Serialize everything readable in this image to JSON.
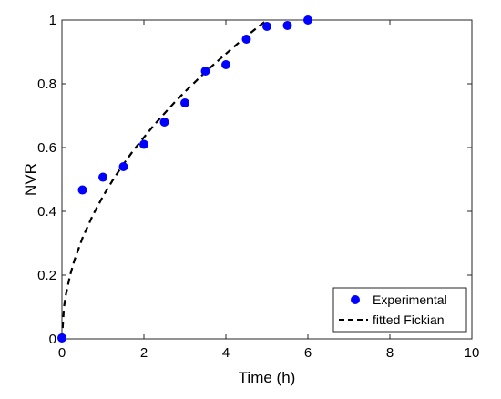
{
  "chart_data": {
    "type": "scatter",
    "xlabel": "Time (h)",
    "ylabel": "NVR",
    "xlim": [
      0,
      10
    ],
    "ylim": [
      0,
      1
    ],
    "xticks": [
      0,
      2,
      4,
      6,
      8,
      10
    ],
    "yticks": [
      0,
      0.2,
      0.4,
      0.6,
      0.8,
      1
    ],
    "xtick_labels": [
      "0",
      "2",
      "4",
      "6",
      "8",
      "10"
    ],
    "ytick_labels": [
      "0",
      "0.2",
      "0.4",
      "0.6",
      "0.8",
      "1"
    ],
    "grid": false,
    "legend_position": "bottom-right",
    "series": [
      {
        "name": "Experimental",
        "kind": "scatter",
        "color": "#0000ff",
        "x": [
          0,
          0.5,
          1,
          1.5,
          2,
          2.5,
          3,
          3.5,
          4,
          4.5,
          5,
          5.5,
          6
        ],
        "y": [
          0.003,
          0.467,
          0.507,
          0.54,
          0.61,
          0.68,
          0.74,
          0.84,
          0.86,
          0.94,
          0.98,
          0.983,
          1.0
        ]
      },
      {
        "name": "fitted Fickian",
        "kind": "line",
        "style": "dashed",
        "color": "#000000",
        "x": [
          0,
          0.05,
          0.1,
          0.2,
          0.3,
          0.5,
          0.75,
          1,
          1.25,
          1.5,
          1.75,
          2,
          2.25,
          2.5,
          2.75,
          3,
          3.25,
          3.5,
          3.75,
          4,
          4.25,
          4.5,
          4.75,
          5
        ],
        "y": [
          0,
          0.1,
          0.141,
          0.2,
          0.245,
          0.316,
          0.387,
          0.447,
          0.5,
          0.548,
          0.592,
          0.632,
          0.671,
          0.707,
          0.742,
          0.775,
          0.806,
          0.837,
          0.866,
          0.894,
          0.922,
          0.949,
          0.975,
          1.0
        ]
      }
    ]
  }
}
